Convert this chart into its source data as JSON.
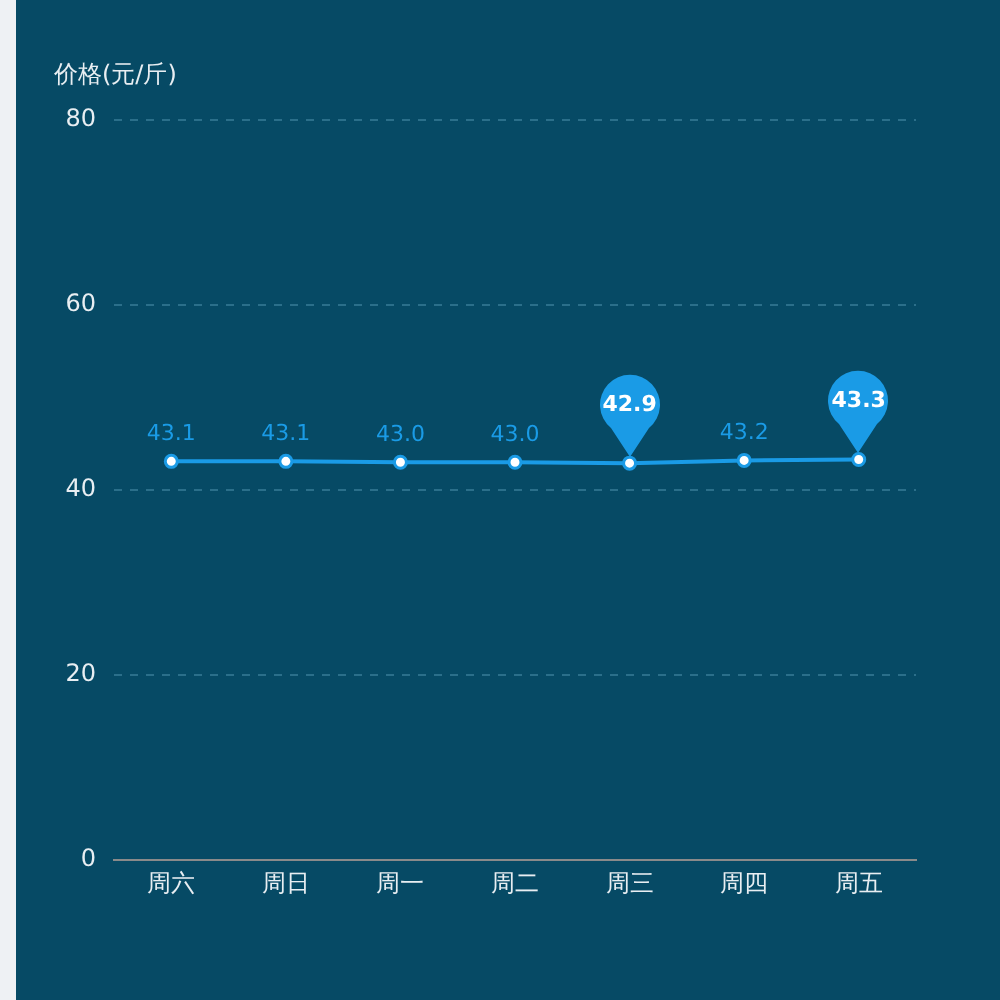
{
  "chart_data": {
    "type": "line",
    "ylabel": "价格(元/斤)",
    "categories": [
      "周六",
      "周日",
      "周一",
      "周二",
      "周三",
      "周四",
      "周五"
    ],
    "series": [
      {
        "color": "#1a9be6",
        "values": [
          43.1,
          43.1,
          43.0,
          43.0,
          42.9,
          43.2,
          43.3
        ],
        "value_labels": [
          "43.1",
          "43.1",
          "43.0",
          "43.0",
          null,
          "43.2",
          null
        ]
      }
    ],
    "ylim": [
      0,
      80
    ],
    "yticks": [
      0,
      20,
      40,
      60,
      80
    ],
    "grid": "y",
    "marker": "circle",
    "annotations": [
      {
        "text": "42.9",
        "x": "周三",
        "y": 42.9
      },
      {
        "text": "43.3",
        "x": "周五",
        "y": 43.3
      }
    ]
  }
}
